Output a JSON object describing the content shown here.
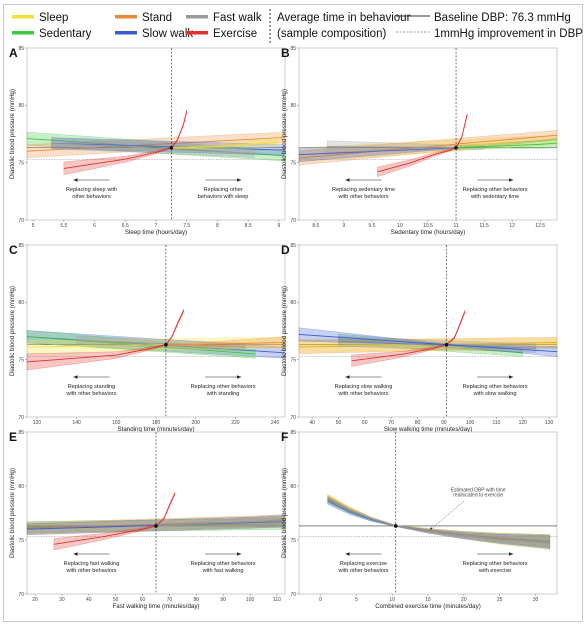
{
  "legend": {
    "items": [
      {
        "label": "Sleep",
        "color": "#f2e03a"
      },
      {
        "label": "Stand",
        "color": "#e8893a"
      },
      {
        "label": "Fast walk",
        "color": "#999999"
      },
      {
        "label": "Sedentary",
        "color": "#3ec63e"
      },
      {
        "label": "Slow walk",
        "color": "#3b5bd6"
      },
      {
        "label": "Exercise",
        "color": "#e0332e"
      }
    ],
    "avg_time_label_1": "Average time in behaviour",
    "avg_time_label_2": "(sample composition)",
    "baseline_label": "Baseline DBP: 76.3 mmHg",
    "improvement_label": "1mmHg improvement in DBP"
  },
  "chart_data": [
    {
      "panel": "A",
      "type": "line",
      "xlabel": "Sleep time (hours/day)",
      "ylabel": "Diastolic blood pressure (mmHg)",
      "xticks": [
        5,
        5.5,
        6,
        6.5,
        7,
        7.5,
        8,
        8.5,
        9
      ],
      "xlim": [
        4.9,
        9.1
      ],
      "yticks": [
        70,
        75,
        80,
        85
      ],
      "ylim": [
        70,
        85
      ],
      "avg_x": 7.25,
      "baseline": 76.3,
      "improvement": 75.3,
      "series": [
        {
          "name": "Sedentary",
          "x": [
            4.9,
            9.1
          ],
          "y": [
            77.1,
            75.6
          ]
        },
        {
          "name": "Stand",
          "x": [
            4.9,
            9.1
          ],
          "y": [
            76.0,
            77.2
          ]
        },
        {
          "name": "Slow walk",
          "x": [
            5.3,
            9.1
          ],
          "y": [
            76.7,
            76.1
          ]
        },
        {
          "name": "Fast walk",
          "x": [
            5.3,
            8.6
          ],
          "y": [
            76.7,
            75.8
          ]
        },
        {
          "name": "Exercise",
          "x": [
            5.5,
            6.5,
            7.0,
            7.25,
            7.35,
            7.45,
            7.5
          ],
          "y": [
            74.5,
            75.3,
            75.9,
            76.3,
            77.0,
            78.4,
            79.5
          ]
        },
        {
          "name": "Sleep",
          "x": [
            7.25,
            7.5,
            8.0,
            8.5,
            9.0
          ],
          "y": [
            76.3,
            76.3,
            76.4,
            76.6,
            76.8
          ]
        }
      ],
      "annotations": [
        {
          "text": [
            "Replacing sleep with",
            "other behaviors"
          ],
          "side": "left"
        },
        {
          "text": [
            "Replacing other",
            "behaviors with sleep"
          ],
          "side": "right"
        }
      ]
    },
    {
      "panel": "B",
      "type": "line",
      "xlabel": "Sedentary time (hours/day)",
      "ylabel": "Diastolic blood pressure (mmHg)",
      "xticks": [
        8.5,
        9,
        9.5,
        10,
        10.5,
        11,
        11.5,
        12,
        12.5
      ],
      "xlim": [
        8.2,
        12.8
      ],
      "yticks": [
        70,
        75,
        80,
        85
      ],
      "ylim": [
        70,
        85
      ],
      "avg_x": 11.0,
      "baseline": 76.3,
      "improvement": 75.3,
      "series": [
        {
          "name": "Sleep",
          "x": [
            8.2,
            12.8
          ],
          "y": [
            75.7,
            77.0
          ]
        },
        {
          "name": "Stand",
          "x": [
            8.2,
            12.8
          ],
          "y": [
            75.4,
            77.4
          ]
        },
        {
          "name": "Slow walk",
          "x": [
            8.2,
            11.0
          ],
          "y": [
            75.7,
            76.3
          ]
        },
        {
          "name": "Fast walk",
          "x": [
            8.7,
            11.5
          ],
          "y": [
            76.4,
            76.3
          ]
        },
        {
          "name": "Exercise",
          "x": [
            9.6,
            10.2,
            10.6,
            10.9,
            11.0,
            11.1,
            11.2
          ],
          "y": [
            74.2,
            75.0,
            75.7,
            76.1,
            76.3,
            77.2,
            79.2
          ]
        },
        {
          "name": "Sedentary",
          "x": [
            11.0,
            11.5,
            12.0,
            12.5,
            12.8
          ],
          "y": [
            76.3,
            76.4,
            76.5,
            76.6,
            76.7
          ]
        }
      ],
      "annotations": [
        {
          "text": [
            "Replacing sedentary time",
            "with other behaviors"
          ],
          "side": "left"
        },
        {
          "text": [
            "Replacing other behaviors",
            "with sedentary time"
          ],
          "side": "right"
        }
      ]
    },
    {
      "panel": "C",
      "type": "line",
      "xlabel": "Standing time (minutes/day)",
      "ylabel": "Diastolic blood pressure (mmHg)",
      "xticks": [
        120,
        140,
        160,
        180,
        200,
        220,
        240
      ],
      "xlim": [
        115,
        245
      ],
      "yticks": [
        70,
        75,
        80,
        85
      ],
      "ylim": [
        70,
        85
      ],
      "avg_x": 185,
      "baseline": 76.3,
      "improvement": 75.3,
      "series": [
        {
          "name": "Slow walk",
          "x": [
            115,
            245
          ],
          "y": [
            77.0,
            75.6
          ]
        },
        {
          "name": "Sedentary",
          "x": [
            115,
            230
          ],
          "y": [
            77.0,
            75.5
          ]
        },
        {
          "name": "Sleep",
          "x": [
            115,
            245
          ],
          "y": [
            76.1,
            76.5
          ]
        },
        {
          "name": "Fast walk",
          "x": [
            140,
            225
          ],
          "y": [
            76.7,
            76.1
          ]
        },
        {
          "name": "Exercise",
          "x": [
            115,
            160,
            178,
            185,
            188,
            191,
            194
          ],
          "y": [
            74.8,
            75.4,
            76.0,
            76.3,
            77.0,
            78.2,
            79.3
          ]
        },
        {
          "name": "Stand",
          "x": [
            185,
            200,
            220,
            245
          ],
          "y": [
            76.3,
            76.3,
            76.4,
            76.5
          ]
        }
      ],
      "annotations": [
        {
          "text": [
            "Replacing standing",
            "with other behaviors"
          ],
          "side": "left"
        },
        {
          "text": [
            "Replacing other behaviors",
            "with standing"
          ],
          "side": "right"
        }
      ]
    },
    {
      "panel": "D",
      "type": "line",
      "xlabel": "Slow walking time (minutes/day)",
      "ylabel": "Diastolic blood pressure (mmHg)",
      "xticks": [
        40,
        50,
        60,
        70,
        80,
        90,
        100,
        110,
        120,
        130
      ],
      "xlim": [
        35,
        133
      ],
      "yticks": [
        70,
        75,
        80,
        85
      ],
      "ylim": [
        70,
        85
      ],
      "avg_x": 91,
      "baseline": 76.3,
      "improvement": 75.3,
      "series": [
        {
          "name": "Sedentary",
          "x": [
            50,
            120
          ],
          "y": [
            76.8,
            75.6
          ]
        },
        {
          "name": "Stand",
          "x": [
            35,
            133
          ],
          "y": [
            76.1,
            76.5
          ]
        },
        {
          "name": "Sleep",
          "x": [
            35,
            133
          ],
          "y": [
            76.2,
            76.4
          ]
        },
        {
          "name": "Fast walk",
          "x": [
            50,
            125
          ],
          "y": [
            76.6,
            76.0
          ]
        },
        {
          "name": "Exercise",
          "x": [
            55,
            75,
            86,
            91,
            94,
            96,
            98
          ],
          "y": [
            74.9,
            75.5,
            76.0,
            76.3,
            76.9,
            78.0,
            79.2
          ]
        },
        {
          "name": "Slow walk",
          "x": [
            35,
            91,
            133
          ],
          "y": [
            77.2,
            76.3,
            75.7
          ]
        }
      ],
      "annotations": [
        {
          "text": [
            "Replacing slow walking",
            "with other behaviors"
          ],
          "side": "left"
        },
        {
          "text": [
            "Replacing other behaviors",
            "with slow walking"
          ],
          "side": "right"
        }
      ]
    },
    {
      "panel": "E",
      "type": "line",
      "xlabel": "Fast walking time (minutes/day)",
      "ylabel": "Diastolic blood pressure (mmHg)",
      "xticks": [
        20,
        30,
        40,
        50,
        60,
        70,
        80,
        90,
        100,
        110
      ],
      "xlim": [
        17,
        113
      ],
      "yticks": [
        70,
        75,
        80,
        85
      ],
      "ylim": [
        70,
        85
      ],
      "avg_x": 65,
      "baseline": 76.3,
      "improvement": 75.3,
      "series": [
        {
          "name": "Sedentary",
          "x": [
            17,
            113
          ],
          "y": [
            76.2,
            76.5
          ]
        },
        {
          "name": "Sleep",
          "x": [
            17,
            113
          ],
          "y": [
            76.0,
            76.7
          ]
        },
        {
          "name": "Stand",
          "x": [
            17,
            113
          ],
          "y": [
            76.1,
            76.8
          ]
        },
        {
          "name": "Slow walk",
          "x": [
            17,
            113
          ],
          "y": [
            76.0,
            76.7
          ]
        },
        {
          "name": "Exercise",
          "x": [
            27,
            45,
            58,
            65,
            68,
            70,
            72
          ],
          "y": [
            74.6,
            75.3,
            75.9,
            76.3,
            77.0,
            78.2,
            79.3
          ]
        },
        {
          "name": "Fast walk",
          "x": [
            65,
            80,
            100,
            113
          ],
          "y": [
            76.3,
            76.5,
            76.7,
            76.9
          ]
        }
      ],
      "annotations": [
        {
          "text": [
            "Replacing fast walking",
            "with other behaviors"
          ],
          "side": "left"
        },
        {
          "text": [
            "Replacing other behaviors",
            "with fast walking"
          ],
          "side": "right"
        }
      ]
    },
    {
      "panel": "F",
      "type": "line",
      "xlabel": "Combined exercise time (minutes/day)",
      "ylabel": "Diastolic blood pressure (mmHg)",
      "xticks": [
        0,
        5,
        10,
        15,
        20,
        25,
        30
      ],
      "xlim": [
        -3,
        33
      ],
      "yticks": [
        70,
        75,
        80,
        85
      ],
      "ylim": [
        70,
        85
      ],
      "avg_x": 10.5,
      "baseline": 76.3,
      "improvement": 75.3,
      "series": [
        {
          "name": "Sleep",
          "x": [
            1,
            4,
            7,
            10.5,
            15,
            20,
            25,
            32
          ],
          "y": [
            79.0,
            77.9,
            77.0,
            76.3,
            75.8,
            75.4,
            75.0,
            74.7
          ]
        },
        {
          "name": "Sedentary",
          "x": [
            1,
            4,
            7,
            10.5,
            15,
            20,
            25,
            32
          ],
          "y": [
            78.7,
            77.7,
            76.9,
            76.3,
            75.9,
            75.5,
            75.2,
            74.9
          ]
        },
        {
          "name": "Stand",
          "x": [
            1,
            4,
            7,
            10.5,
            15,
            20,
            25,
            32
          ],
          "y": [
            78.9,
            77.8,
            77.0,
            76.3,
            75.9,
            75.5,
            75.2,
            74.9
          ]
        },
        {
          "name": "Slow walk",
          "x": [
            1,
            4,
            7,
            10.5,
            15,
            20,
            25,
            32
          ],
          "y": [
            78.6,
            77.6,
            76.9,
            76.3,
            75.8,
            75.4,
            75.1,
            74.8
          ]
        },
        {
          "name": "Fast walk",
          "x": [
            1,
            4,
            7,
            10.5,
            15,
            20,
            25,
            32
          ],
          "y": [
            78.8,
            77.8,
            77.0,
            76.3,
            75.8,
            75.4,
            75.1,
            74.8
          ]
        }
      ],
      "callout": [
        "Estimated DBP with time",
        "reallocated to exercise"
      ],
      "annotations": [
        {
          "text": [
            "Replacing exercise",
            "with other behaviors"
          ],
          "side": "left"
        },
        {
          "text": [
            "Replacing other behaviors",
            "with exercise"
          ],
          "side": "right"
        }
      ]
    }
  ]
}
